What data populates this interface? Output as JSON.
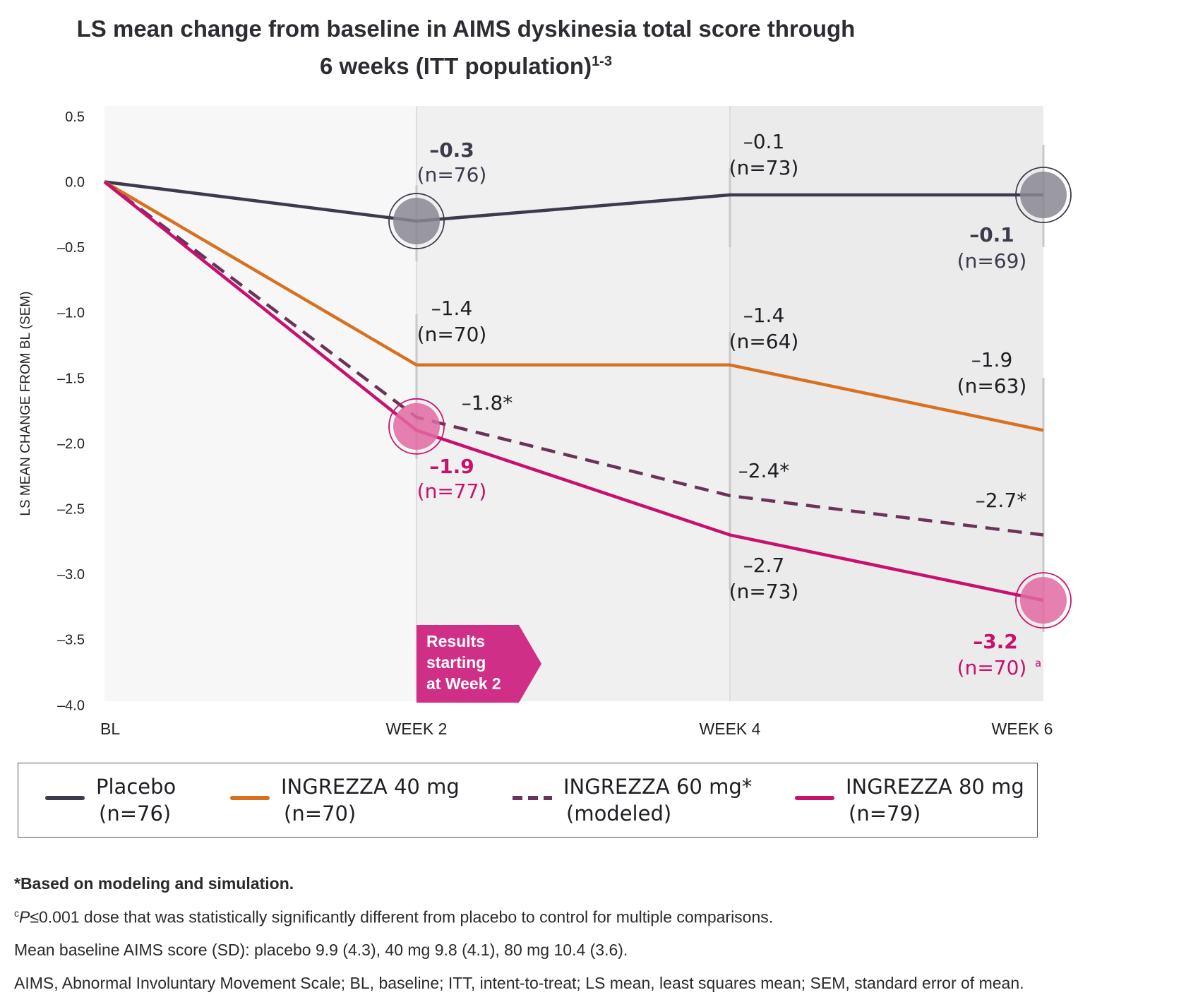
{
  "title": "LS mean change from baseline in AIMS dyskinesia total score through 6 weeks (ITT population)",
  "title_sup": "1-3",
  "chart_data": {
    "type": "line",
    "title": "LS mean change from baseline in AIMS dyskinesia total score through 6 weeks (ITT population)",
    "ylabel": "LS MEAN CHANGE FROM BL (SEM)",
    "xlabel": "",
    "categories": [
      "BL",
      "WEEK 2",
      "WEEK 4",
      "WEEK 6"
    ],
    "ylim": [
      -4.0,
      0.5
    ],
    "yticks": [
      "0.5",
      "0.0",
      "–0.5",
      "–1.0",
      "–1.5",
      "–2.0",
      "–2.5",
      "–3.0",
      "–3.5",
      "–4.0"
    ],
    "ytick_values": [
      0.5,
      0.0,
      -0.5,
      -1.0,
      -1.5,
      -2.0,
      -2.5,
      -3.0,
      -3.5,
      -4.0
    ],
    "series": [
      {
        "name": "Placebo",
        "color": "#3c3a4c",
        "dashed": false,
        "values": [
          0.0,
          -0.3,
          -0.1,
          -0.1
        ],
        "labels": [
          "",
          "–0.3",
          "–0.1",
          "–0.1"
        ],
        "n": [
          "",
          "(n=76)",
          "(n=73)",
          "(n=69)"
        ]
      },
      {
        "name": "INGREZZA 40 mg",
        "color": "#d8711f",
        "dashed": false,
        "values": [
          0.0,
          -1.4,
          -1.4,
          -1.9
        ],
        "labels": [
          "",
          "–1.4",
          "–1.4",
          "–1.9"
        ],
        "n": [
          "",
          "(n=70)",
          "(n=64)",
          "(n=63)"
        ]
      },
      {
        "name": "INGREZZA 60 mg*",
        "color": "#6a3358",
        "dashed": true,
        "values": [
          0.0,
          -1.8,
          -2.4,
          -2.7
        ],
        "labels": [
          "",
          "–1.8*",
          "–2.4*",
          "–2.7*"
        ],
        "n": [
          "",
          "",
          "",
          ""
        ]
      },
      {
        "name": "INGREZZA 80 mg",
        "color": "#c8106e",
        "dashed": false,
        "values": [
          0.0,
          -1.9,
          -2.7,
          -3.2
        ],
        "labels": [
          "",
          "–1.9",
          "–2.7",
          "–3.2"
        ],
        "n": [
          "",
          "(n=77)",
          "(n=73)",
          "(n=70)"
        ]
      }
    ],
    "annotation": "Results starting at Week 2",
    "footnote_mark": "a",
    "grid": false,
    "legend_position": "bottom"
  },
  "legend": [
    {
      "name": "Placebo",
      "sub": "(n=76)",
      "color": "#3c3a4c",
      "dashed": false
    },
    {
      "name": "INGREZZA 40 mg",
      "sub": "(n=70)",
      "color": "#d8711f",
      "dashed": false
    },
    {
      "name": "INGREZZA 60 mg*",
      "sub": "(modeled)",
      "color": "#6a3358",
      "dashed": true
    },
    {
      "name": "INGREZZA 80 mg",
      "sub": "(n=79)",
      "color": "#c8106e",
      "dashed": false
    }
  ],
  "footnotes": {
    "f1": "*Based on modeling and simulation.",
    "f2_sup": "c",
    "f2_p": "P",
    "f2_rest": "≤0.001 dose that was statistically significantly different from placebo to control for multiple comparisons.",
    "f3": "Mean baseline AIMS score (SD): placebo 9.9 (4.3), 40 mg 9.8 (4.1), 80 mg 10.4 (3.6).",
    "f4": "AIMS, Abnormal Involuntary Movement Scale; BL, baseline; ITT, intent-to-treat; LS mean, least squares mean; SEM, standard error of mean."
  }
}
